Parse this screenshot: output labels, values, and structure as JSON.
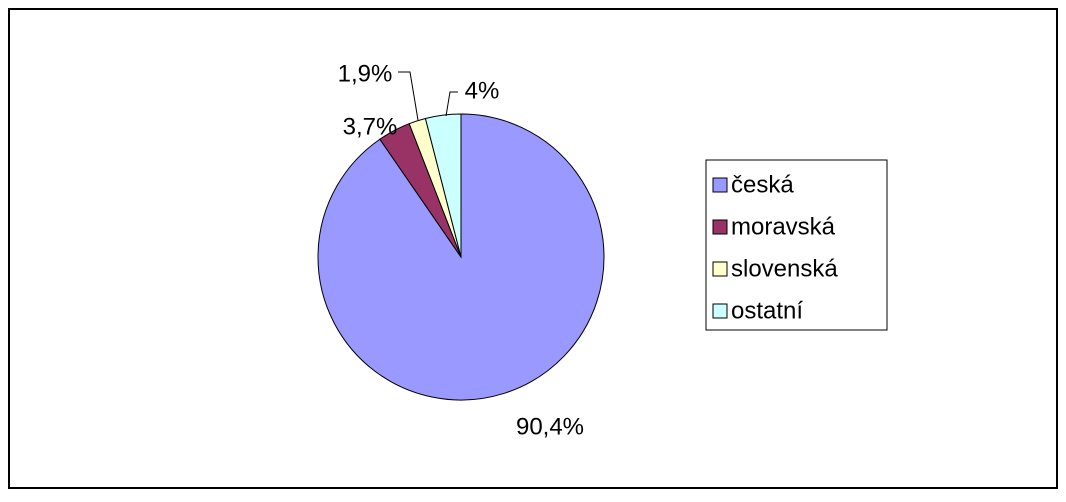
{
  "chart_data": {
    "type": "pie",
    "categories": [
      "česká",
      "moravská",
      "slovenská",
      "ostatní"
    ],
    "values": [
      90.4,
      3.7,
      1.9,
      4
    ],
    "value_labels": [
      "90,4%",
      "3,7%",
      "1,9%",
      "4%"
    ],
    "colors": [
      "#9999ff",
      "#993366",
      "#ffffcc",
      "#ccffff"
    ],
    "legend": "right"
  }
}
